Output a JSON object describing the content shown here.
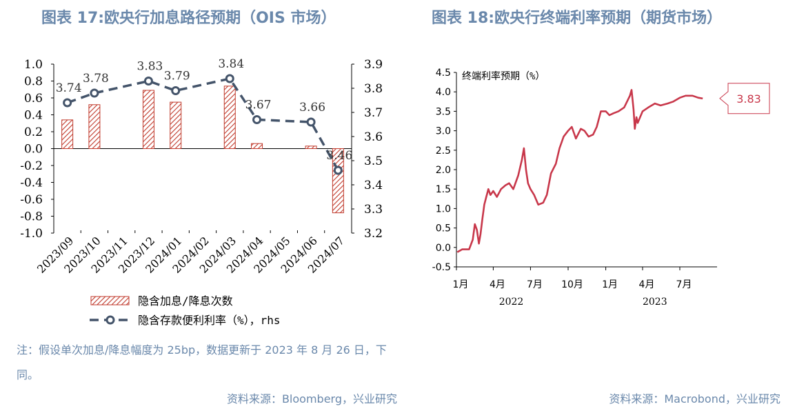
{
  "titles": {
    "left": "图表 17:欧央行加息路径预期（OIS 市场）",
    "right": "图表 18:欧央行终端利率预期（期货市场）"
  },
  "notes": {
    "left": "注：假设单次加息/降息幅度为 25bp，数据更新于 2023 年 8 月 26 日，下同。"
  },
  "sources": {
    "left": "资料来源：Bloomberg，兴业研究",
    "right": "资料来源：Macrobond，兴业研究"
  },
  "colors": {
    "bar": "#c0392b",
    "line": "#44546a",
    "futures_line": "#c8374a",
    "axis": "#000000",
    "title": "#6a88ab"
  },
  "chart_data": [
    {
      "type": "bar+line",
      "categories": [
        "2023/09",
        "2023/10",
        "2023/11",
        "2023/12",
        "2024/01",
        "2024/02",
        "2024/03",
        "2024/04",
        "2024/05",
        "2024/06",
        "2024/07"
      ],
      "series": [
        {
          "name": "隐含加息/降息次数",
          "type": "bar",
          "axis": "left",
          "values": [
            0.34,
            0.52,
            null,
            0.69,
            0.55,
            null,
            0.74,
            0.06,
            null,
            0.03,
            -0.76
          ]
        },
        {
          "name": "隐含存款便利利率（%），rhs",
          "type": "line",
          "axis": "right",
          "values": [
            3.74,
            3.78,
            null,
            3.83,
            3.79,
            null,
            3.84,
            3.67,
            null,
            3.66,
            3.46
          ],
          "labels": [
            "3.74",
            "3.78",
            "",
            "3.83",
            "3.79",
            "",
            "3.84",
            "3.67",
            "",
            "3.66",
            "3.46"
          ]
        }
      ],
      "y_left": {
        "lim": [
          -1.0,
          1.0
        ],
        "ticks": [
          "1.0",
          "0.8",
          "0.6",
          "0.4",
          "0.2",
          "0.0",
          "-0.2",
          "-0.4",
          "-0.6",
          "-0.8",
          "-1.0"
        ]
      },
      "y_right": {
        "lim": [
          3.2,
          3.9
        ],
        "ticks": [
          "3.9",
          "3.8",
          "3.7",
          "3.6",
          "3.5",
          "3.4",
          "3.3",
          "3.2"
        ]
      },
      "legend_placement": "bottom",
      "grid": false
    },
    {
      "type": "line",
      "series_label": "终端利率预期（%）",
      "end_label": "3.83",
      "x_month_ticks": [
        "1月",
        "4月",
        "7月",
        "10月",
        "1月",
        "4月",
        "7月"
      ],
      "x_year_labels": [
        "2022",
        "2023"
      ],
      "x_range": [
        "2022-01-01",
        "2023-09-30"
      ],
      "ylim": [
        -0.5,
        4.5
      ],
      "y_ticks": [
        "4.5",
        "4.0",
        "3.5",
        "3.0",
        "2.5",
        "2.0",
        "1.5",
        "1.0",
        "0.5",
        "0.0",
        "-0.5"
      ],
      "x_dates": [
        "2022-01-03",
        "2022-01-15",
        "2022-02-01",
        "2022-02-10",
        "2022-02-15",
        "2022-02-20",
        "2022-02-25",
        "2022-03-01",
        "2022-03-05",
        "2022-03-10",
        "2022-03-15",
        "2022-03-20",
        "2022-03-25",
        "2022-04-01",
        "2022-04-10",
        "2022-04-20",
        "2022-05-01",
        "2022-05-10",
        "2022-05-20",
        "2022-06-01",
        "2022-06-10",
        "2022-06-15",
        "2022-06-20",
        "2022-06-25",
        "2022-07-01",
        "2022-07-10",
        "2022-07-20",
        "2022-08-01",
        "2022-08-10",
        "2022-08-20",
        "2022-09-01",
        "2022-09-10",
        "2022-09-20",
        "2022-10-01",
        "2022-10-10",
        "2022-10-20",
        "2022-11-01",
        "2022-11-10",
        "2022-11-20",
        "2022-12-01",
        "2022-12-10",
        "2022-12-20",
        "2023-01-01",
        "2023-01-10",
        "2023-01-20",
        "2023-02-01",
        "2023-02-15",
        "2023-03-01",
        "2023-03-05",
        "2023-03-10",
        "2023-03-13",
        "2023-03-17",
        "2023-03-20",
        "2023-04-01",
        "2023-04-15",
        "2023-05-01",
        "2023-05-15",
        "2023-06-01",
        "2023-06-15",
        "2023-07-01",
        "2023-07-15",
        "2023-08-01",
        "2023-08-15",
        "2023-08-26"
      ],
      "y_values": [
        -0.12,
        -0.05,
        -0.05,
        0.2,
        0.6,
        0.45,
        0.1,
        0.35,
        0.7,
        1.1,
        1.3,
        1.5,
        1.35,
        1.45,
        1.3,
        1.5,
        1.6,
        1.65,
        1.5,
        1.85,
        2.25,
        2.55,
        2.0,
        1.65,
        1.5,
        1.35,
        1.1,
        1.15,
        1.35,
        1.9,
        2.15,
        2.55,
        2.85,
        3.0,
        3.1,
        2.8,
        3.05,
        3.0,
        2.85,
        2.9,
        3.1,
        3.5,
        3.5,
        3.4,
        3.45,
        3.5,
        3.6,
        3.9,
        4.05,
        3.55,
        3.05,
        3.35,
        3.2,
        3.5,
        3.6,
        3.7,
        3.65,
        3.7,
        3.75,
        3.85,
        3.9,
        3.9,
        3.85,
        3.83
      ]
    }
  ]
}
